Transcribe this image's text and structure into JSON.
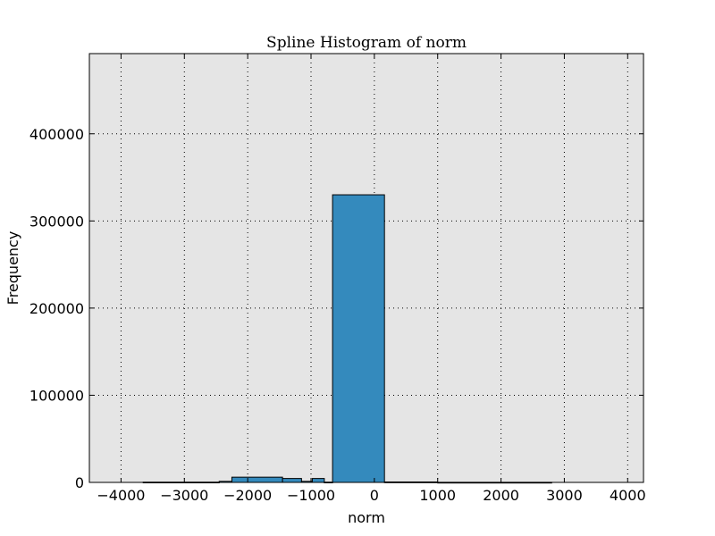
{
  "chart_data": {
    "type": "bar",
    "title": "Spline Histogram of norm",
    "xlabel": "norm",
    "ylabel": "Frequency",
    "xlim": [
      -4500,
      4250
    ],
    "ylim": [
      0,
      492000
    ],
    "xticks": [
      -4000,
      -3000,
      -2000,
      -1000,
      0,
      1000,
      2000,
      3000,
      4000
    ],
    "xtick_labels": [
      "−4000",
      "−3000",
      "−2000",
      "−1000",
      "0",
      "1000",
      "2000",
      "3000",
      "4000"
    ],
    "yticks": [
      0,
      100000,
      200000,
      300000,
      400000
    ],
    "ytick_labels": [
      "0",
      "100000",
      "200000",
      "300000",
      "400000"
    ],
    "grid": true,
    "legend": "none",
    "colors": {
      "bar_fill": "#348abd",
      "bar_edge": "#000000",
      "plot_background": "#e5e5e5"
    },
    "bins": [
      {
        "x0": -3650,
        "x1": -2450,
        "value": 300
      },
      {
        "x0": -2450,
        "x1": -2250,
        "value": 1200
      },
      {
        "x0": -2250,
        "x1": -1450,
        "value": 6000
      },
      {
        "x0": -1450,
        "x1": -1150,
        "value": 4500
      },
      {
        "x0": -1150,
        "x1": -980,
        "value": 1200
      },
      {
        "x0": -980,
        "x1": -790,
        "value": 4500
      },
      {
        "x0": -790,
        "x1": -660,
        "value": 300
      },
      {
        "x0": -660,
        "x1": 160,
        "value": 330000
      },
      {
        "x0": 160,
        "x1": 1000,
        "value": 500
      },
      {
        "x0": 1000,
        "x1": 2800,
        "value": 100
      }
    ]
  }
}
